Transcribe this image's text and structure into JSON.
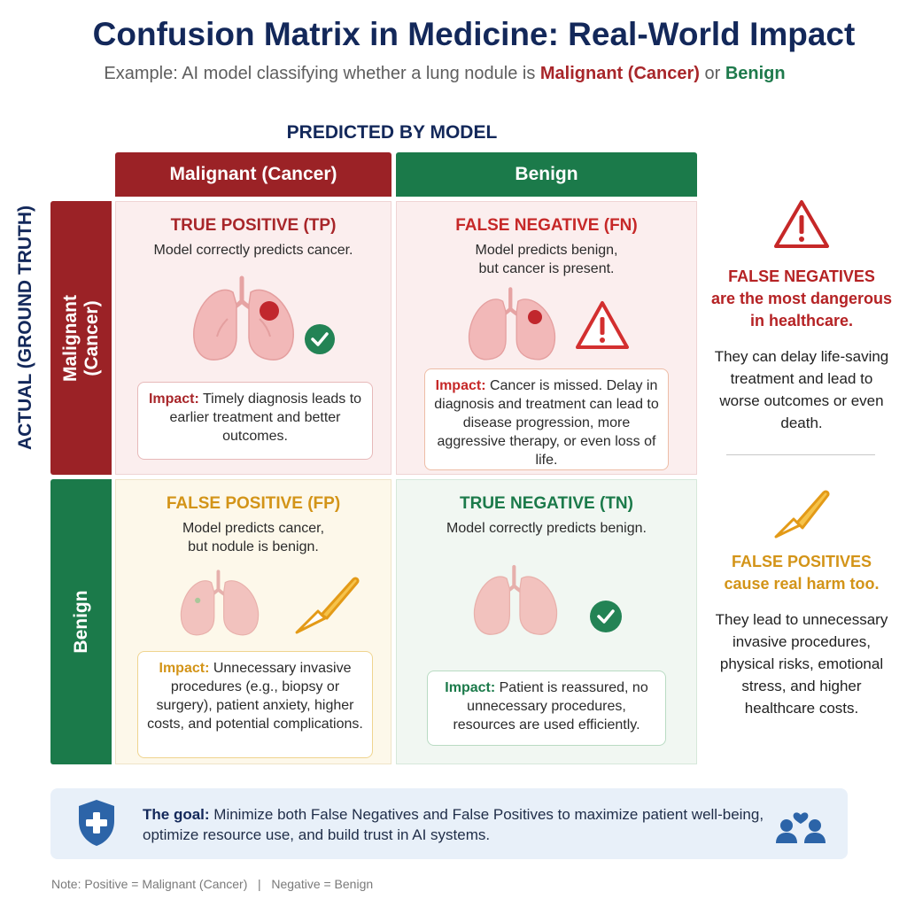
{
  "title": "Confusion Matrix in Medicine: Real-World Impact",
  "subtitle": {
    "prefix": "Example: AI model classifying whether a lung nodule is ",
    "malignant": "Malignant (Cancer)",
    "connector": " or ",
    "benign": "Benign"
  },
  "predicted_label": "PREDICTED BY MODEL",
  "actual_label": "ACTUAL (GROUND TRUTH)",
  "columns": {
    "malignant": "Malignant (Cancer)",
    "benign": "Benign"
  },
  "rows": {
    "malignant_line1": "Malignant",
    "malignant_line2": "(Cancer)",
    "benign": "Benign"
  },
  "cells": {
    "tp": {
      "title": "TRUE POSITIVE (TP)",
      "desc1": "Model correctly predicts cancer.",
      "desc2": "",
      "impact_label": "Impact:",
      "impact_text": " Timely diagnosis leads to earlier treatment and better outcomes."
    },
    "fn": {
      "title": "FALSE NEGATIVE (FN)",
      "desc1": "Model predicts benign,",
      "desc2": "but cancer is present.",
      "impact_label": "Impact:",
      "impact_text": " Cancer is missed. Delay in diagnosis and treatment can lead to disease progression, more aggressive therapy, or even loss of life."
    },
    "fp": {
      "title": "FALSE POSITIVE (FP)",
      "desc1": "Model predicts cancer,",
      "desc2": "but nodule is benign.",
      "impact_label": "Impact:",
      "impact_text": " Unnecessary invasive procedures (e.g., biopsy or surgery), patient anxiety, higher costs, and potential complications."
    },
    "tn": {
      "title": "TRUE NEGATIVE (TN)",
      "desc1": "Model correctly predicts benign.",
      "desc2": "",
      "impact_label": "Impact:",
      "impact_text": " Patient is reassured, no unnecessary procedures, resources are used efficiently."
    }
  },
  "side": {
    "fn": {
      "title1": "FALSE NEGATIVES",
      "title2": "are the most dangerous",
      "title3": "in healthcare.",
      "body": "They can delay life-saving treatment and lead to worse outcomes or even death."
    },
    "fp": {
      "title1": "FALSE POSITIVES",
      "title2": "cause real harm too.",
      "body": "They lead to unnecessary invasive procedures, physical risks, emotional stress, and higher healthcare costs."
    }
  },
  "goal": {
    "label": "The goal:",
    "text": " Minimize both False Negatives and False Positives to maximize patient well-being, optimize resource use, and build trust in AI systems."
  },
  "note": "Note: Positive = Malignant (Cancer)   |   Negative = Benign",
  "colors": {
    "malignant": "#9b2226",
    "benign": "#1b7a4a",
    "false_positive": "#d39418",
    "false_negative": "#c62828",
    "navy": "#13285a"
  },
  "icons": {
    "tp": [
      "lungs-icon",
      "check-circle-icon"
    ],
    "fn": [
      "lungs-icon",
      "warning-triangle-icon"
    ],
    "fp": [
      "lungs-icon",
      "scalpel-icon"
    ],
    "tn": [
      "lungs-icon",
      "check-circle-icon"
    ],
    "side": [
      "warning-triangle-icon",
      "scalpel-icon"
    ],
    "goal": [
      "shield-plus-icon",
      "people-heart-icon"
    ]
  }
}
